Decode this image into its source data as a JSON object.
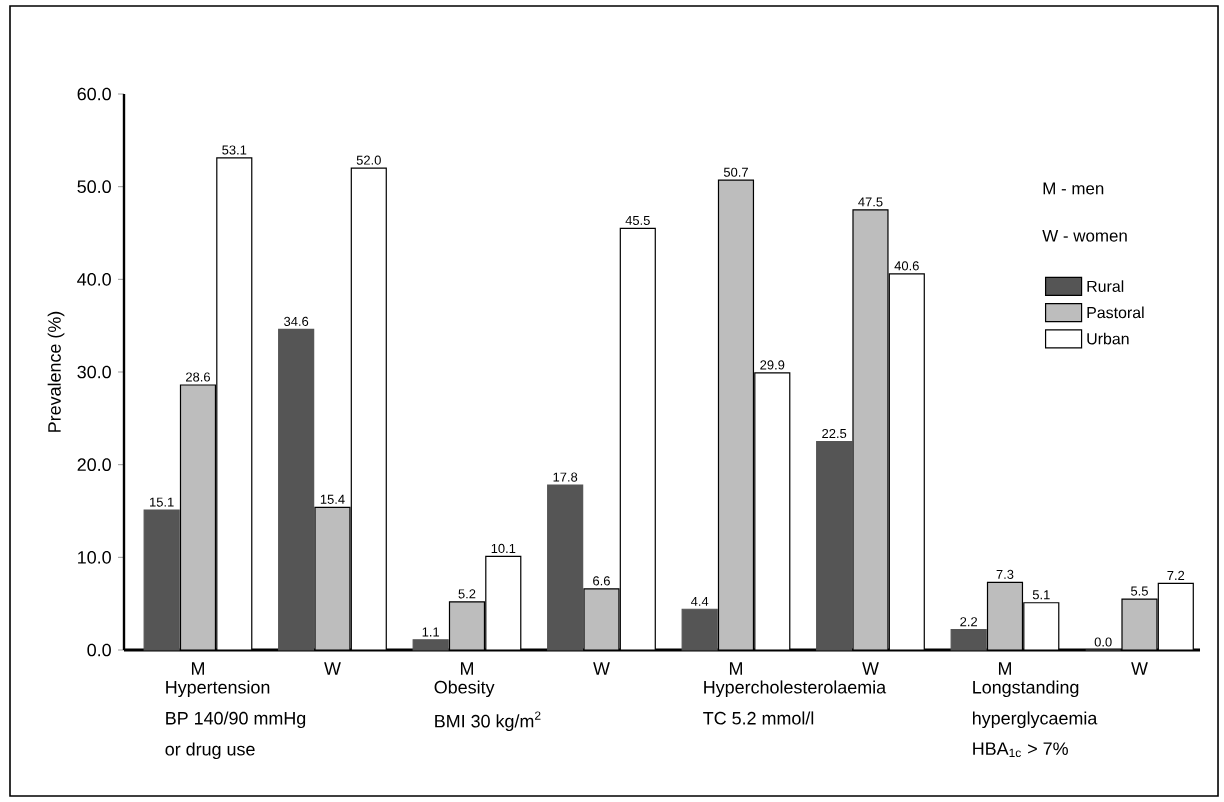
{
  "chart_data": {
    "type": "bar",
    "ylabel": "Prevalence (%)",
    "categories": [
      "M",
      "W",
      "M",
      "W",
      "M",
      "W",
      "M",
      "W"
    ],
    "series": [
      {
        "name": "Rural",
        "color": "#555555",
        "values": [
          15.1,
          34.6,
          1.1,
          17.8,
          4.4,
          22.5,
          2.2,
          0
        ],
        "value_labels": [
          "15.1",
          "34.6",
          "1.1",
          "17.8",
          "4.4",
          "22.5",
          "2.2",
          "0.0"
        ]
      },
      {
        "name": "Pastoral",
        "color": "#bdbdbd",
        "values": [
          28.6,
          15.4,
          5.2,
          6.6,
          50.7,
          47.5,
          7.3,
          5.5
        ],
        "value_labels": [
          "28.6",
          "15.4",
          "5.2",
          "6.6",
          "50.7",
          "47.5",
          "7.3",
          "5.5"
        ]
      },
      {
        "name": "Urban",
        "color": "#ffffff",
        "values": [
          53.1,
          52,
          10.1,
          45.5,
          29.9,
          40.6,
          5.1,
          7.2
        ],
        "value_labels": [
          "53.1",
          "52.0",
          "10.1",
          "45.5",
          "29.9",
          "40.6",
          "5.1",
          "7.2"
        ]
      }
    ],
    "ylim": [
      0,
      60
    ],
    "yticks": [
      {
        "value": 0,
        "label": "0.0"
      },
      {
        "value": 10,
        "label": "10.0"
      },
      {
        "value": 20,
        "label": "20.0"
      },
      {
        "value": 30,
        "label": "30.0"
      },
      {
        "value": 40,
        "label": "40.0"
      },
      {
        "value": 50,
        "label": "50.0"
      },
      {
        "value": 60,
        "label": "60.0"
      }
    ],
    "legend": "right",
    "grid": false,
    "annotations": [
      "Hypertension",
      "BP 140/90 mmHg",
      "or drug use",
      "Obesity",
      "BMI 30 kg/m$^{2}$",
      "Hypercholesterolaemia",
      "TC 5.2 mmol/l",
      "Longstanding",
      "hyperglycaemia",
      "HBA$_{1c}$ > 7%",
      "M - men",
      "W - women"
    ]
  }
}
